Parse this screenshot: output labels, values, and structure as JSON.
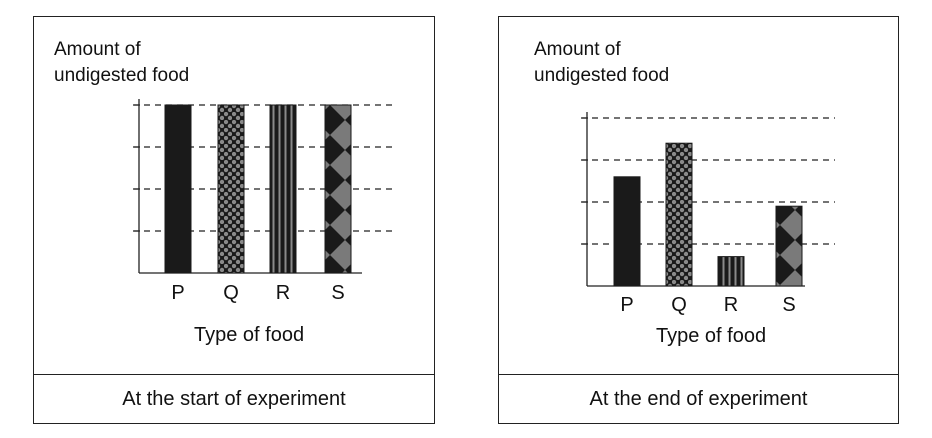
{
  "chart_data": [
    {
      "type": "bar",
      "categories": [
        "P",
        "Q",
        "R",
        "S"
      ],
      "values": [
        4,
        4,
        4,
        4
      ],
      "ylim": [
        0,
        4
      ],
      "ylabel": "Amount of undigested food",
      "ylabel_lines": [
        "Amount of",
        "undigested food"
      ],
      "xlabel": "Type of food",
      "caption": "At the start of experiment",
      "grid": "dashed horizontal",
      "patterns": [
        "solid",
        "dots",
        "vertical-stripes",
        "diamonds"
      ]
    },
    {
      "type": "bar",
      "categories": [
        "P",
        "Q",
        "R",
        "S"
      ],
      "values": [
        2.6,
        3.4,
        0.7,
        1.9
      ],
      "ylim": [
        0,
        4
      ],
      "ylabel": "Amount of undigested food",
      "ylabel_lines": [
        "Amount of",
        "undigested food"
      ],
      "xlabel": "Type of food",
      "caption": "At the  end  of experiment",
      "grid": "dashed horizontal",
      "patterns": [
        "solid",
        "dots",
        "vertical-stripes",
        "diamonds"
      ]
    }
  ],
  "colors": {
    "bar_fill": "#1a1a1a",
    "pattern_gray": "#8a8a8a",
    "grid": "#222222"
  }
}
